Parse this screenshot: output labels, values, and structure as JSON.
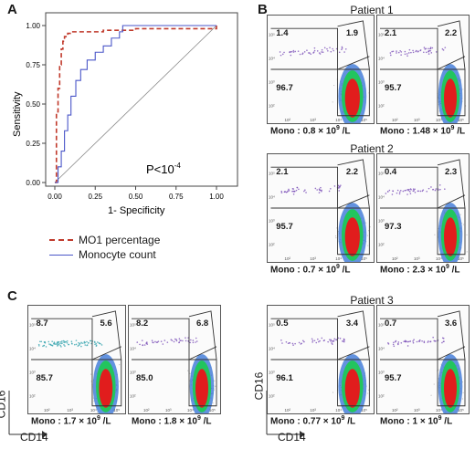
{
  "panels": {
    "A": {
      "letter": "A"
    },
    "B": {
      "letter": "B"
    },
    "C": {
      "letter": "C"
    }
  },
  "roc": {
    "ylabel": "Sensitivity",
    "xlabel": "1- Specificity",
    "pvalue_text": "P<10",
    "pvalue_exp": "-4",
    "xticks": [
      "0.00",
      "0.25",
      "0.50",
      "0.75",
      "1.00"
    ],
    "yticks": [
      "0.00",
      "0.25",
      "0.50",
      "0.75",
      "1.00"
    ],
    "legend": [
      {
        "label": "MO1 percentage",
        "color": "#c0392b",
        "style": "dashed"
      },
      {
        "label": "Monocyte count",
        "color": "#4a56c8",
        "style": "solid"
      }
    ]
  },
  "chart_data": {
    "type": "line",
    "xlabel": "1- Specificity",
    "ylabel": "Sensitivity",
    "xlim": [
      0,
      1
    ],
    "ylim": [
      0,
      1
    ],
    "series": [
      {
        "name": "MO1 percentage",
        "x": [
          0,
          0.01,
          0.02,
          0.03,
          0.04,
          0.05,
          0.06,
          0.08,
          0.1,
          0.15,
          0.2,
          0.3,
          0.4,
          0.5,
          1.0
        ],
        "y": [
          0,
          0.45,
          0.6,
          0.75,
          0.85,
          0.9,
          0.93,
          0.95,
          0.96,
          0.96,
          0.96,
          0.97,
          0.97,
          0.98,
          1.0
        ]
      },
      {
        "name": "Monocyte count",
        "x": [
          0,
          0.02,
          0.04,
          0.06,
          0.08,
          0.1,
          0.13,
          0.16,
          0.2,
          0.25,
          0.3,
          0.35,
          0.4,
          0.42,
          0.5,
          1.0
        ],
        "y": [
          0,
          0.1,
          0.2,
          0.33,
          0.43,
          0.55,
          0.65,
          0.72,
          0.78,
          0.83,
          0.87,
          0.92,
          0.96,
          1.0,
          1.0,
          1.0
        ]
      }
    ]
  },
  "panel_b": {
    "patients": [
      "Patient 1",
      "Patient 2",
      "Patient 3"
    ],
    "plots": [
      {
        "q_ul": "1.4",
        "q_ur": "1.9",
        "q_ll": "96.7",
        "mono": "Mono : 0.8 × 10",
        "exp": "9",
        "unit": " /L"
      },
      {
        "q_ul": "2.1",
        "q_ur": "2.2",
        "q_ll": "95.7",
        "mono": "Mono : 1.48 × 10",
        "exp": "9",
        "unit": " /L"
      },
      {
        "q_ul": "2.1",
        "q_ur": "2.2",
        "q_ll": "95.7",
        "mono": "Mono : 0.7 × 10",
        "exp": "9",
        "unit": " /L"
      },
      {
        "q_ul": "0.4",
        "q_ur": "2.3",
        "q_ll": "97.3",
        "mono": "Mono : 2.3 × 10",
        "exp": "9",
        "unit": " /L"
      },
      {
        "q_ul": "0.5",
        "q_ur": "3.4",
        "q_ll": "96.1",
        "mono": "Mono : 0.77 × 10",
        "exp": "9",
        "unit": " /L"
      },
      {
        "q_ul": "0.7",
        "q_ur": "3.6",
        "q_ll": "95.7",
        "mono": "Mono : 1 × 10",
        "exp": "9",
        "unit": " /L"
      }
    ]
  },
  "panel_c": {
    "plots": [
      {
        "q_ul": "8.7",
        "q_ur": "5.6",
        "q_ll": "85.7",
        "mono": "Mono : 1.7 × 10",
        "exp": "9",
        "unit": " /L"
      },
      {
        "q_ul": "8.2",
        "q_ur": "6.8",
        "q_ll": "85.0",
        "mono": "Mono : 1.8 × 10",
        "exp": "9",
        "unit": " /L"
      }
    ]
  },
  "axes": {
    "y": "CD16",
    "x": "CD14"
  }
}
